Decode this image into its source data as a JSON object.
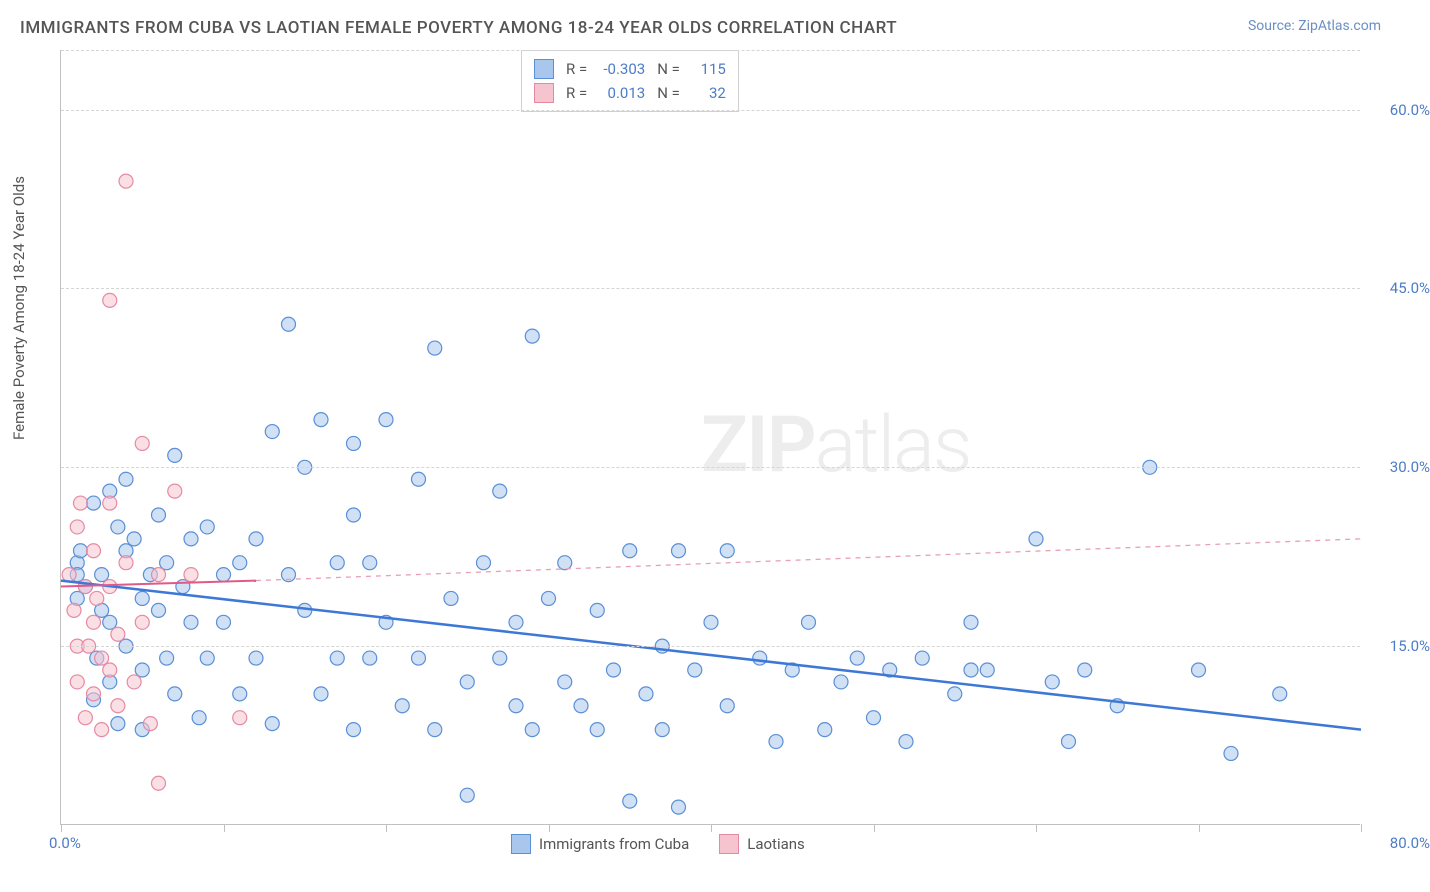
{
  "title": "IMMIGRANTS FROM CUBA VS LAOTIAN FEMALE POVERTY AMONG 18-24 YEAR OLDS CORRELATION CHART",
  "source_label": "Source: ",
  "source_name": "ZipAtlas.com",
  "ylabel": "Female Poverty Among 18-24 Year Olds",
  "watermark_bold": "ZIP",
  "watermark_light": "atlas",
  "chart": {
    "type": "scatter",
    "xlim": [
      0,
      80
    ],
    "ylim": [
      0,
      65
    ],
    "xtick_positions": [
      0,
      10,
      20,
      30,
      40,
      50,
      60,
      70,
      80
    ],
    "x_origin_label": "0.0%",
    "x_max_label": "80.0%",
    "yticks": [
      {
        "value": 15,
        "label": "15.0%"
      },
      {
        "value": 30,
        "label": "30.0%"
      },
      {
        "value": 45,
        "label": "45.0%"
      },
      {
        "value": 60,
        "label": "60.0%"
      }
    ],
    "background_color": "#ffffff",
    "grid_color": "#d5d5d5",
    "axis_color": "#c0c0c0",
    "label_color": "#555555",
    "tick_label_color": "#4d7cc7",
    "marker_radius": 7,
    "marker_opacity": 0.55,
    "marker_stroke_width": 1.2,
    "series": [
      {
        "id": "cuba",
        "label": "Immigrants from Cuba",
        "fill_color": "#a9c6ec",
        "stroke_color": "#5b8fd6",
        "R": "-0.303",
        "N": "115",
        "trend": {
          "x1": 0,
          "y1": 20.5,
          "x2": 80,
          "y2": 8,
          "color": "#3d78d6",
          "width": 2.5,
          "dash": "none"
        },
        "trend_extrap": null,
        "points": [
          [
            1,
            22
          ],
          [
            1,
            21
          ],
          [
            1.5,
            20
          ],
          [
            1,
            19
          ],
          [
            1.2,
            23
          ],
          [
            2,
            27
          ],
          [
            2,
            10.5
          ],
          [
            2.2,
            14
          ],
          [
            2.5,
            21
          ],
          [
            2.5,
            18
          ],
          [
            3,
            28
          ],
          [
            3,
            17
          ],
          [
            3,
            12
          ],
          [
            3.5,
            25
          ],
          [
            3.5,
            8.5
          ],
          [
            4,
            29
          ],
          [
            4,
            23
          ],
          [
            4,
            15
          ],
          [
            4.5,
            24
          ],
          [
            5,
            19
          ],
          [
            5,
            13
          ],
          [
            5,
            8
          ],
          [
            5.5,
            21
          ],
          [
            6,
            26
          ],
          [
            6,
            18
          ],
          [
            6.5,
            14
          ],
          [
            6.5,
            22
          ],
          [
            7,
            31
          ],
          [
            7,
            11
          ],
          [
            7.5,
            20
          ],
          [
            8,
            17
          ],
          [
            8,
            24
          ],
          [
            8.5,
            9
          ],
          [
            9,
            25
          ],
          [
            9,
            14
          ],
          [
            10,
            21
          ],
          [
            10,
            17
          ],
          [
            11,
            22
          ],
          [
            11,
            11
          ],
          [
            12,
            24
          ],
          [
            12,
            14
          ],
          [
            13,
            33
          ],
          [
            13,
            8.5
          ],
          [
            14,
            21
          ],
          [
            14,
            42
          ],
          [
            15,
            30
          ],
          [
            15,
            18
          ],
          [
            16,
            11
          ],
          [
            16,
            34
          ],
          [
            17,
            22
          ],
          [
            17,
            14
          ],
          [
            18,
            32
          ],
          [
            18,
            26
          ],
          [
            18,
            8
          ],
          [
            19,
            22
          ],
          [
            19,
            14
          ],
          [
            20,
            34
          ],
          [
            20,
            17
          ],
          [
            21,
            10
          ],
          [
            22,
            29
          ],
          [
            22,
            14
          ],
          [
            23,
            40
          ],
          [
            23,
            8
          ],
          [
            24,
            19
          ],
          [
            25,
            12
          ],
          [
            25,
            2.5
          ],
          [
            26,
            22
          ],
          [
            27,
            14
          ],
          [
            27,
            28
          ],
          [
            28,
            10
          ],
          [
            28,
            17
          ],
          [
            29,
            41
          ],
          [
            29,
            8
          ],
          [
            30,
            19
          ],
          [
            31,
            12
          ],
          [
            31,
            22
          ],
          [
            32,
            10
          ],
          [
            33,
            8
          ],
          [
            33,
            18
          ],
          [
            34,
            13
          ],
          [
            35,
            23
          ],
          [
            35,
            2
          ],
          [
            36,
            11
          ],
          [
            37,
            15
          ],
          [
            37,
            8
          ],
          [
            38,
            23
          ],
          [
            38,
            1.5
          ],
          [
            39,
            13
          ],
          [
            40,
            17
          ],
          [
            41,
            10
          ],
          [
            41,
            23
          ],
          [
            43,
            14
          ],
          [
            44,
            7
          ],
          [
            45,
            13
          ],
          [
            46,
            17
          ],
          [
            47,
            8
          ],
          [
            48,
            12
          ],
          [
            49,
            14
          ],
          [
            50,
            9
          ],
          [
            51,
            13
          ],
          [
            52,
            7
          ],
          [
            53,
            14
          ],
          [
            55,
            11
          ],
          [
            56,
            17
          ],
          [
            57,
            13
          ],
          [
            60,
            24
          ],
          [
            61,
            12
          ],
          [
            62,
            7
          ],
          [
            63,
            13
          ],
          [
            65,
            10
          ],
          [
            67,
            30
          ],
          [
            70,
            13
          ],
          [
            72,
            6
          ],
          [
            75,
            11
          ],
          [
            56,
            13
          ]
        ]
      },
      {
        "id": "laotians",
        "label": "Laotians",
        "fill_color": "#f5c4cf",
        "stroke_color": "#e68aa3",
        "R": "0.013",
        "N": "32",
        "trend": {
          "x1": 0,
          "y1": 20,
          "x2": 12,
          "y2": 20.5,
          "color": "#e15a86",
          "width": 2,
          "dash": "none"
        },
        "trend_extrap": {
          "x1": 12,
          "y1": 20.5,
          "x2": 80,
          "y2": 24,
          "color": "#e8a0b5",
          "width": 1.3,
          "dash": "5,5"
        },
        "points": [
          [
            0.5,
            21
          ],
          [
            0.8,
            18
          ],
          [
            1,
            15
          ],
          [
            1,
            25
          ],
          [
            1,
            12
          ],
          [
            1.2,
            27
          ],
          [
            1.5,
            20
          ],
          [
            1.5,
            9
          ],
          [
            1.7,
            15
          ],
          [
            2,
            23
          ],
          [
            2,
            17
          ],
          [
            2,
            11
          ],
          [
            2.2,
            19
          ],
          [
            2.5,
            14
          ],
          [
            2.5,
            8
          ],
          [
            3,
            27
          ],
          [
            3,
            20
          ],
          [
            3,
            13
          ],
          [
            3,
            44
          ],
          [
            3.5,
            16
          ],
          [
            3.5,
            10
          ],
          [
            4,
            22
          ],
          [
            4,
            54
          ],
          [
            4.5,
            12
          ],
          [
            5,
            32
          ],
          [
            5,
            17
          ],
          [
            5.5,
            8.5
          ],
          [
            6,
            21
          ],
          [
            6,
            3.5
          ],
          [
            7,
            28
          ],
          [
            8,
            21
          ],
          [
            11,
            9
          ]
        ]
      }
    ]
  },
  "stats_legend": {
    "r_label": "R =",
    "n_label": "N ="
  }
}
